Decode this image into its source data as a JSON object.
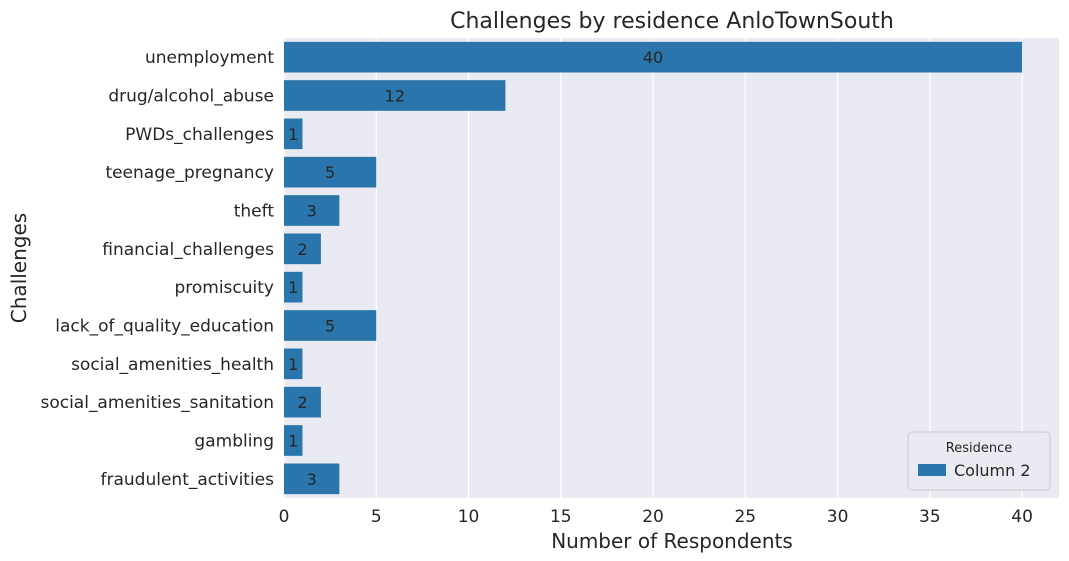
{
  "chart_data": {
    "type": "bar",
    "orientation": "horizontal",
    "title": "Challenges by residence AnloTownSouth",
    "xlabel": "Number of Respondents",
    "ylabel": "Challenges",
    "xlim": [
      0,
      42
    ],
    "xticks": [
      "0",
      "5",
      "10",
      "15",
      "20",
      "25",
      "30",
      "35",
      "40"
    ],
    "grid": true,
    "legend": {
      "title": "Residence",
      "placement": "bottom-right"
    },
    "categories": [
      "unemployment",
      "drug/alcohol_abuse",
      "PWDs_challenges",
      "teenage_pregnancy",
      "theft",
      "financial_challenges",
      "promiscuity",
      "lack_of_quality_education",
      "social_amenities_health",
      "social_amenities_sanitation",
      "gambling",
      "fraudulent_activities"
    ],
    "series": [
      {
        "name": "Column 2",
        "color": "#2a75ab",
        "values": [
          40,
          12,
          1,
          5,
          3,
          2,
          1,
          5,
          1,
          2,
          1,
          3
        ]
      }
    ]
  },
  "colors": {
    "plot_background": "#eaeaf2",
    "grid": "#ffffff",
    "text": "#262626"
  }
}
